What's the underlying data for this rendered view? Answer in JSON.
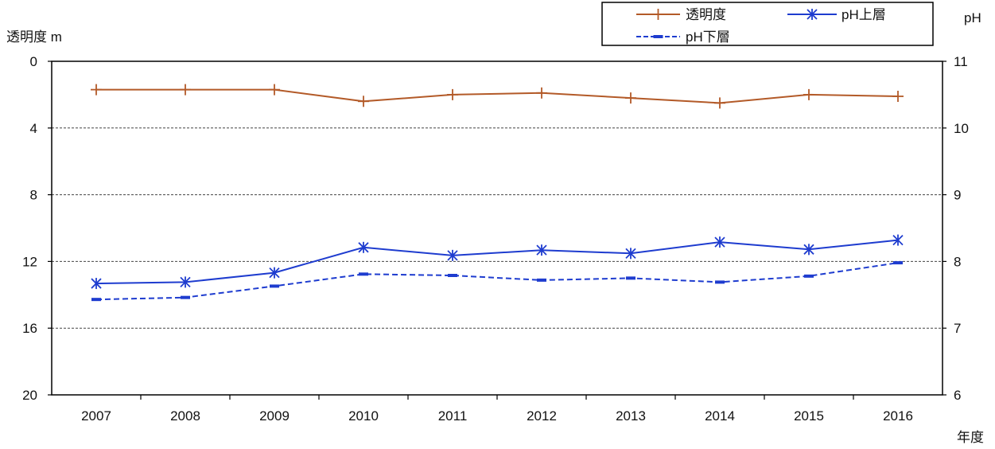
{
  "chart_data": {
    "type": "line",
    "categories": [
      "2007",
      "2008",
      "2009",
      "2010",
      "2011",
      "2012",
      "2013",
      "2014",
      "2015",
      "2016"
    ],
    "xlabel": "年度",
    "ylabel_left": "透明度 m",
    "ylabel_right": "pH",
    "y_left": {
      "range": [
        0,
        20
      ],
      "inverted": true,
      "ticks": [
        0,
        4,
        8,
        12,
        16,
        20
      ]
    },
    "y_right": {
      "range": [
        6,
        11
      ],
      "inverted": false,
      "ticks": [
        11,
        10,
        9,
        8,
        7,
        6
      ]
    },
    "grid": true,
    "legend_position": "top-right",
    "series": [
      {
        "name": "透明度",
        "secondary_axis": false,
        "color": "#b35a28",
        "marker_icon": "plus-icon",
        "dashed": false,
        "values": [
          1.7,
          1.7,
          1.7,
          2.4,
          2.0,
          1.9,
          2.2,
          2.5,
          2.0,
          2.1
        ]
      },
      {
        "name": "pH上層",
        "secondary_axis": true,
        "color": "#1e3ccf",
        "marker_icon": "asterisk-icon",
        "dashed": false,
        "values": [
          7.67,
          7.69,
          7.83,
          8.21,
          8.09,
          8.17,
          8.12,
          8.29,
          8.18,
          8.32
        ]
      },
      {
        "name": "pH下層",
        "secondary_axis": true,
        "color": "#1e3ccf",
        "marker_icon": "dash-icon",
        "dashed": true,
        "values": [
          7.43,
          7.46,
          7.63,
          7.81,
          7.79,
          7.72,
          7.75,
          7.69,
          7.78,
          7.98
        ]
      }
    ]
  }
}
